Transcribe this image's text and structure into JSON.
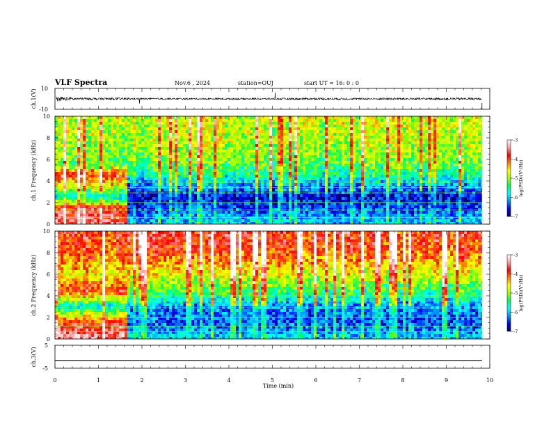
{
  "header": {
    "title": "VLF Spectra",
    "date": "Nov.6 , 2024",
    "station": "station=OUJ",
    "start_time": "start UT = 16: 0 : 0"
  },
  "colors": {
    "spectrogram_scale": [
      "#000060",
      "#0000ff",
      "#0090ff",
      "#00ffff",
      "#00ff60",
      "#a0ff00",
      "#ffff00",
      "#ff8000",
      "#ff0000",
      "#ffa0a0",
      "#ffffff"
    ]
  },
  "chart_data": [
    {
      "type": "line",
      "name": "ch1-waveform",
      "ylabel": "ch.1(V)",
      "ylim": [
        -10,
        10
      ],
      "yticks": [
        "10",
        "-10"
      ],
      "xlim": [
        0,
        10
      ],
      "x_extent": [
        0,
        9.82
      ],
      "amplitude_envelope": [
        {
          "x": 0.0,
          "amp": 2.6
        },
        {
          "x": 0.2,
          "amp": 2.0
        },
        {
          "x": 0.5,
          "amp": 1.4
        },
        {
          "x": 1.0,
          "amp": 1.1
        },
        {
          "x": 1.6,
          "amp": 1.2
        },
        {
          "x": 2.0,
          "amp": 0.8
        },
        {
          "x": 5.0,
          "amp": 0.9
        },
        {
          "x": 6.0,
          "amp": 1.0
        },
        {
          "x": 9.8,
          "amp": 1.1
        }
      ]
    },
    {
      "type": "heatmap",
      "name": "ch1-spectrogram",
      "ylabel": "ch.1 Frequency (kHz)",
      "xlim": [
        0,
        10
      ],
      "ylim": [
        0,
        10
      ],
      "yticks": [
        "0",
        "2",
        "4",
        "6",
        "8",
        "10"
      ],
      "color_range": [
        -7,
        -3
      ],
      "colorbar_label": "log(PSD)(V²/Hz)",
      "colorbar_ticks": [
        "-3",
        "-4",
        "-5",
        "-6",
        "-7"
      ],
      "psd_profile_log10_before_1_6min": [
        {
          "khz": 0.3,
          "v": -3.6
        },
        {
          "khz": 1.5,
          "v": -3.8
        },
        {
          "khz": 2.5,
          "v": -5.8
        },
        {
          "khz": 4.5,
          "v": -3.7
        },
        {
          "khz": 5.5,
          "v": -5.2
        },
        {
          "khz": 8.0,
          "v": -4.9
        },
        {
          "khz": 10.0,
          "v": -4.8
        }
      ],
      "psd_profile_log10_after_1_6min": [
        {
          "khz": 0.3,
          "v": -6.0
        },
        {
          "khz": 1.0,
          "v": -6.3
        },
        {
          "khz": 2.5,
          "v": -6.7
        },
        {
          "khz": 3.5,
          "v": -6.2
        },
        {
          "khz": 4.5,
          "v": -5.6
        },
        {
          "khz": 6.0,
          "v": -5.1
        },
        {
          "khz": 8.0,
          "v": -4.9
        },
        {
          "khz": 10.0,
          "v": -4.8
        }
      ],
      "line_frequencies_khz": [
        0.6,
        1.3,
        2.0,
        2.9,
        3.4,
        3.9
      ]
    },
    {
      "type": "heatmap",
      "name": "ch2-spectrogram",
      "ylabel": "ch.2 Frequency (kHz)",
      "xlim": [
        0,
        10
      ],
      "ylim": [
        0,
        10
      ],
      "yticks": [
        "0",
        "2",
        "4",
        "6",
        "8",
        "10"
      ],
      "color_range": [
        -7,
        -3
      ],
      "colorbar_label": "log(PSD)(V²/Hz)",
      "colorbar_ticks": [
        "-3",
        "-4",
        "-5",
        "-6",
        "-7"
      ],
      "psd_profile_log10_before_1_6min": [
        {
          "khz": 0.3,
          "v": -3.5
        },
        {
          "khz": 1.5,
          "v": -3.8
        },
        {
          "khz": 3.0,
          "v": -5.8
        },
        {
          "khz": 4.5,
          "v": -3.8
        },
        {
          "khz": 6.0,
          "v": -4.6
        },
        {
          "khz": 8.0,
          "v": -4.0
        },
        {
          "khz": 10.0,
          "v": -3.9
        }
      ],
      "psd_profile_log10_after_1_6min": [
        {
          "khz": 0.3,
          "v": -6.0
        },
        {
          "khz": 1.5,
          "v": -6.4
        },
        {
          "khz": 3.0,
          "v": -6.2
        },
        {
          "khz": 4.5,
          "v": -5.3
        },
        {
          "khz": 6.0,
          "v": -4.7
        },
        {
          "khz": 8.0,
          "v": -4.0
        },
        {
          "khz": 10.0,
          "v": -3.8
        }
      ],
      "line_frequencies_khz": [
        0.7,
        1.2,
        2.0,
        2.9,
        3.5,
        4.0
      ]
    },
    {
      "type": "line",
      "name": "ch3-waveform",
      "ylabel": "ch.3(V)",
      "ylim": [
        -5,
        5
      ],
      "yticks": [
        "5",
        "-5"
      ],
      "xlim": [
        0,
        10
      ],
      "x_extent": [
        0,
        9.82
      ],
      "constant_value": -1.6
    }
  ],
  "xaxis": {
    "label": "Time (min)",
    "ticks": [
      "0",
      "1",
      "2",
      "3",
      "4",
      "5",
      "6",
      "7",
      "8",
      "9",
      "10"
    ]
  }
}
